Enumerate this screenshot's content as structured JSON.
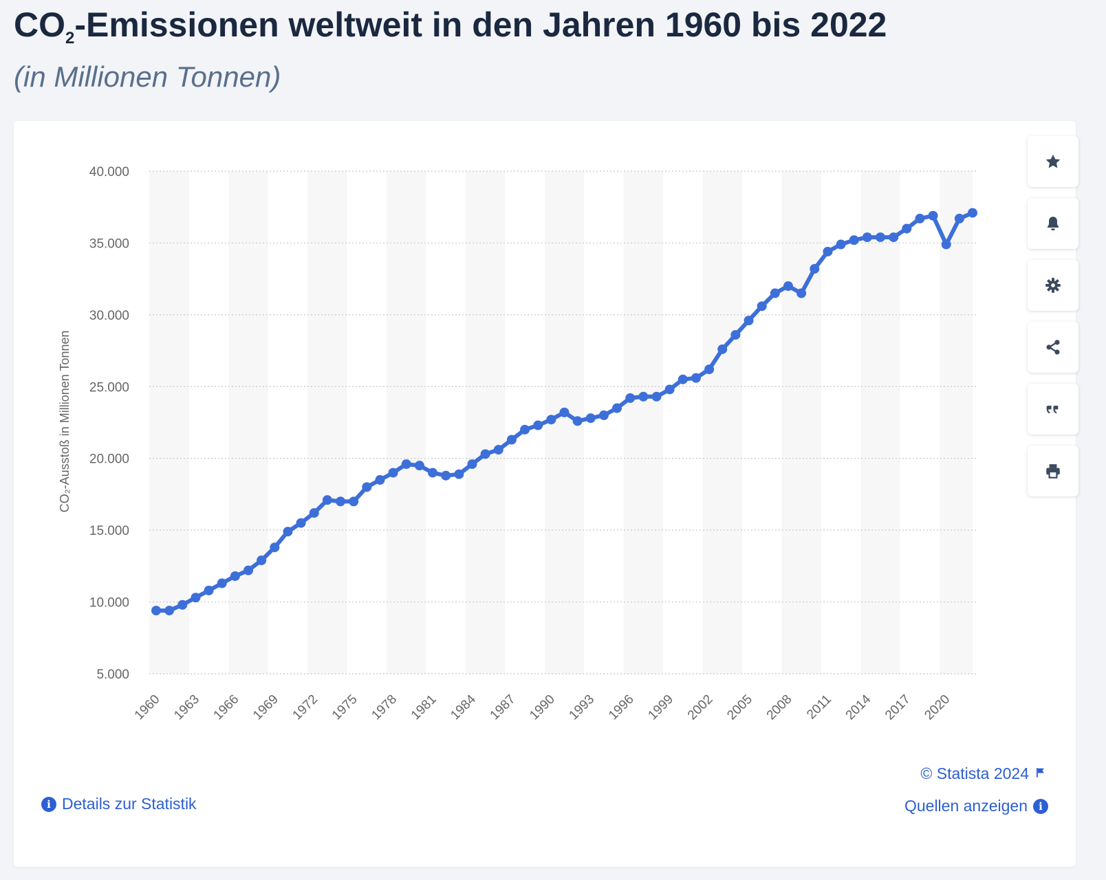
{
  "header": {
    "title_main": "CO",
    "title_sub": "2",
    "title_rest": "-Emissionen weltweit in den Jahren 1960 bis 2022",
    "subtitle": "(in Millionen Tonnen)"
  },
  "toolbar": [
    {
      "name": "favorite-button",
      "icon": "star-icon"
    },
    {
      "name": "alert-button",
      "icon": "bell-icon"
    },
    {
      "name": "settings-button",
      "icon": "gear-icon"
    },
    {
      "name": "share-button",
      "icon": "share-icon"
    },
    {
      "name": "cite-button",
      "icon": "quote-icon"
    },
    {
      "name": "print-button",
      "icon": "print-icon"
    }
  ],
  "footer": {
    "details_label": "Details zur Statistik",
    "copyright_label": "© Statista 2024",
    "sources_label": "Quellen anzeigen"
  },
  "colors": {
    "line": "#3d6fd9",
    "band": "#f7f7f8",
    "grid": "#c8c8c8",
    "link": "#2c5fd4",
    "title": "#1a2840"
  },
  "chart_data": {
    "type": "line",
    "title": "CO₂-Emissionen weltweit in den Jahren 1960 bis 2022",
    "subtitle": "(in Millionen Tonnen)",
    "xlabel": "",
    "ylabel": "CO₂-Ausstoß in Millionen Tonnen",
    "ylim": [
      5000,
      40000
    ],
    "yticks": [
      5000,
      10000,
      15000,
      20000,
      25000,
      30000,
      35000,
      40000
    ],
    "ytick_labels": [
      "5.000",
      "10.000",
      "15.000",
      "20.000",
      "25.000",
      "30.000",
      "35.000",
      "40.000"
    ],
    "xticks": [
      1960,
      1963,
      1966,
      1969,
      1972,
      1975,
      1978,
      1981,
      1984,
      1987,
      1990,
      1993,
      1996,
      1999,
      2002,
      2005,
      2008,
      2011,
      2014,
      2017,
      2020
    ],
    "grid": true,
    "alternating_year_bands": true,
    "x": [
      1960,
      1961,
      1962,
      1963,
      1964,
      1965,
      1966,
      1967,
      1968,
      1969,
      1970,
      1971,
      1972,
      1973,
      1974,
      1975,
      1976,
      1977,
      1978,
      1979,
      1980,
      1981,
      1982,
      1983,
      1984,
      1985,
      1986,
      1987,
      1988,
      1989,
      1990,
      1991,
      1992,
      1993,
      1994,
      1995,
      1996,
      1997,
      1998,
      1999,
      2000,
      2001,
      2002,
      2003,
      2004,
      2005,
      2006,
      2007,
      2008,
      2009,
      2010,
      2011,
      2012,
      2013,
      2014,
      2015,
      2016,
      2017,
      2018,
      2019,
      2020,
      2021,
      2022
    ],
    "series": [
      {
        "values": [
          9400,
          9400,
          9800,
          10300,
          10800,
          11300,
          11800,
          12200,
          12900,
          13800,
          14900,
          15500,
          16200,
          17100,
          17000,
          17000,
          18000,
          18500,
          19000,
          19600,
          19500,
          19000,
          18800,
          18900,
          19600,
          20300,
          20600,
          21300,
          22000,
          22300,
          22700,
          23200,
          22600,
          22800,
          23000,
          23500,
          24200,
          24300,
          24300,
          24800,
          25500,
          25600,
          26200,
          27600,
          28600,
          29600,
          30600,
          31500,
          32000,
          31500,
          33200,
          34400,
          34900,
          35200,
          35400,
          35400,
          35400,
          36000,
          36700,
          36900,
          34900,
          36700,
          37100
        ]
      }
    ]
  }
}
